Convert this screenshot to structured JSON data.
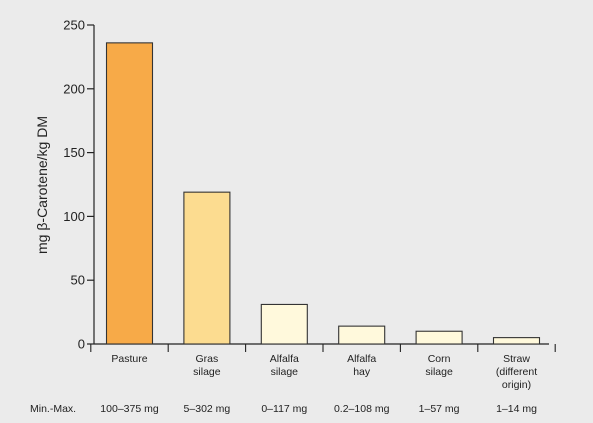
{
  "chart_data": {
    "type": "bar",
    "ylabel": "mg β-Carotene/kg DM",
    "xlabel": "",
    "title": "",
    "ylim": [
      0,
      250
    ],
    "yticks": [
      0,
      50,
      100,
      150,
      200,
      250
    ],
    "grid": false,
    "categories": [
      [
        "Pasture"
      ],
      [
        "Gras",
        "silage"
      ],
      [
        "Alfalfa",
        "silage"
      ],
      [
        "Alfalfa",
        "hay"
      ],
      [
        "Corn",
        "silage"
      ],
      [
        "Straw",
        "(different",
        "origin)"
      ]
    ],
    "values": [
      236,
      119,
      31,
      14,
      10,
      5
    ],
    "colors": [
      "#f7aa48",
      "#fcdc90",
      "#fff9dc",
      "#fff9dc",
      "#fff9dc",
      "#fff9dc"
    ],
    "range_row_label": "Min.-Max.",
    "ranges": [
      "100–375 mg",
      "5–302 mg",
      "0–117 mg",
      "0.2–108 mg",
      "1–57 mg",
      "1–14 mg"
    ]
  }
}
